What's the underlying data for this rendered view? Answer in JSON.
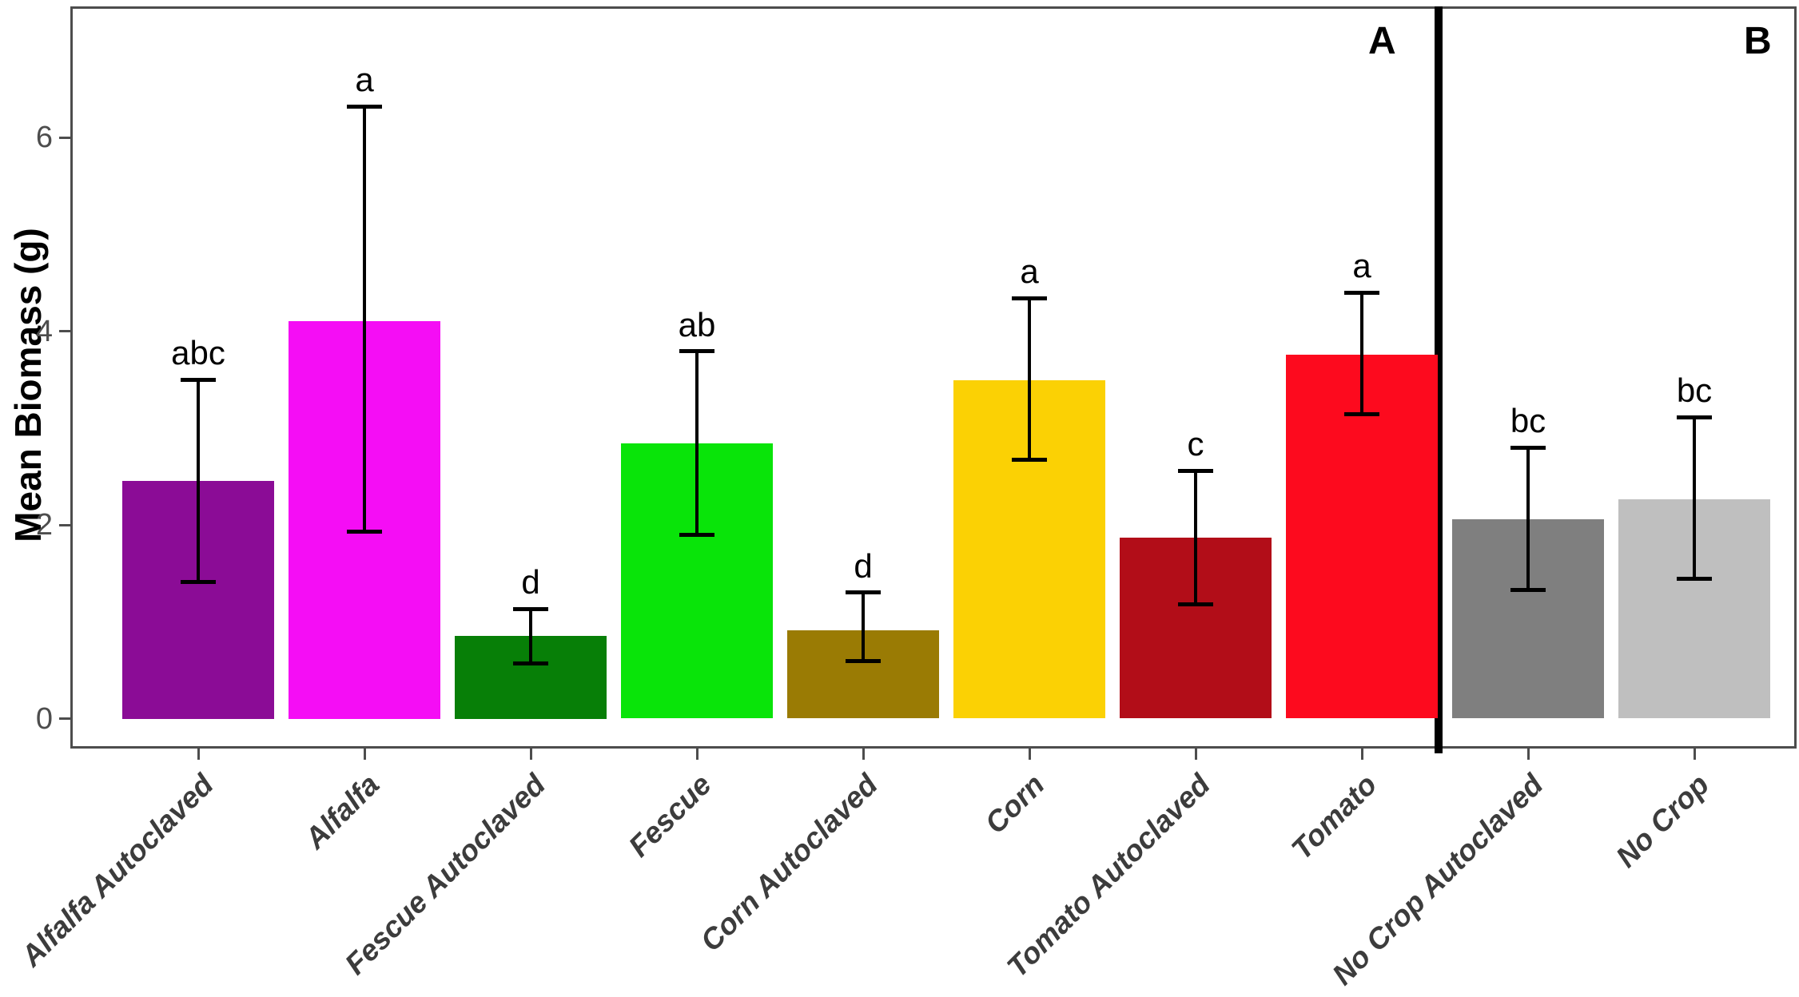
{
  "chart_data": {
    "type": "bar",
    "title": "",
    "xlabel": "",
    "ylabel": "Mean Biomass (g)",
    "ylim": [
      0,
      7.3
    ],
    "yticks": [
      0,
      2,
      4,
      6
    ],
    "grid": false,
    "legend": "none",
    "axis_color": "#4d4d4d",
    "error_bar_color": "#000000",
    "sections": [
      {
        "label": "A",
        "bar_indices": [
          0,
          7
        ]
      },
      {
        "label": "B",
        "bar_indices": [
          8,
          9
        ]
      }
    ],
    "divider_after_category": "Tomato",
    "categories": [
      "Alfalfa Autoclaved",
      "Alfalfa",
      "Fescue Autoclaved",
      "Fescue",
      "Corn Autoclaved",
      "Corn",
      "Tomato Autoclaved",
      "Tomato",
      "No Crop Autoclaved",
      "No Crop"
    ],
    "series": [
      {
        "name": "Mean Biomass (g)",
        "values": [
          2.45,
          4.1,
          0.85,
          2.84,
          0.91,
          3.49,
          1.87,
          3.76,
          2.06,
          2.26
        ],
        "error_low": [
          1.41,
          1.93,
          0.57,
          1.9,
          0.59,
          2.67,
          1.18,
          3.14,
          1.33,
          1.44
        ],
        "error_high": [
          3.5,
          6.32,
          1.13,
          3.79,
          1.3,
          4.34,
          2.56,
          4.4,
          2.8,
          3.11
        ],
        "sig_letters": [
          "abc",
          "a",
          "d",
          "ab",
          "d",
          "a",
          "c",
          "a",
          "bc",
          "bc"
        ],
        "colors": [
          "#8B0C96",
          "#F50DF5",
          "#077F07",
          "#09E409",
          "#9A7B04",
          "#FBD104",
          "#B20D18",
          "#FD0A1E",
          "#7F7F7F",
          "#BFBFBF"
        ]
      }
    ]
  }
}
